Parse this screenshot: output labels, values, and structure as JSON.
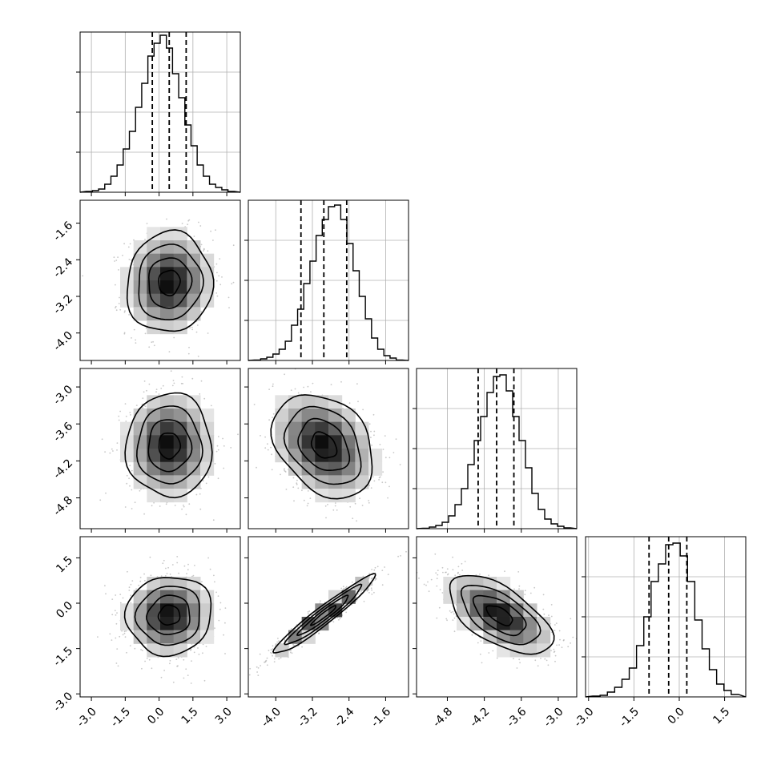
{
  "chart_data": {
    "type": "corner",
    "title": "",
    "params": [
      {
        "index": 0,
        "range": [
          -3.5,
          3.6
        ],
        "ticks": [
          -3.0,
          -1.5,
          0.0,
          1.5,
          3.0
        ],
        "tick_labels": [
          "-3.0",
          "-1.5",
          "0.0",
          "1.5",
          "3.0"
        ],
        "quantiles": [
          -0.3,
          0.45,
          1.2
        ]
      },
      {
        "index": 1,
        "range": [
          -4.6,
          -1.1
        ],
        "ticks": [
          -4.0,
          -3.2,
          -2.4,
          -1.6
        ],
        "tick_labels": [
          "-4.0",
          "-3.2",
          "-2.4",
          "-1.6"
        ],
        "quantiles": [
          -3.45,
          -2.95,
          -2.45
        ]
      },
      {
        "index": 2,
        "range": [
          -5.3,
          -2.7
        ],
        "ticks": [
          -4.8,
          -4.2,
          -3.6,
          -3.0
        ],
        "tick_labels": [
          "-4.8",
          "-4.2",
          "-3.6",
          "-3.0"
        ],
        "quantiles": [
          -4.3,
          -4.0,
          -3.72
        ]
      },
      {
        "index": 3,
        "range": [
          -3.1,
          2.2
        ],
        "ticks": [
          -3.0,
          -1.5,
          0.0,
          1.5
        ],
        "tick_labels": [
          "-3.0",
          "-1.5",
          "0.0",
          "1.5"
        ],
        "quantiles": [
          -1.0,
          -0.35,
          0.25
        ]
      }
    ],
    "diag_yticks": [
      0.25,
      0.5,
      0.75
    ],
    "hist_heights": [
      [
        0.005,
        0.01,
        0.02,
        0.05,
        0.1,
        0.17,
        0.27,
        0.38,
        0.53,
        0.68,
        0.85,
        0.93,
        0.98,
        0.9,
        0.74,
        0.59,
        0.42,
        0.29,
        0.17,
        0.1,
        0.05,
        0.03,
        0.015,
        0.005
      ],
      [
        0.003,
        0.01,
        0.02,
        0.04,
        0.07,
        0.12,
        0.22,
        0.32,
        0.48,
        0.62,
        0.78,
        0.88,
        0.96,
        0.97,
        0.88,
        0.73,
        0.56,
        0.4,
        0.26,
        0.14,
        0.07,
        0.03,
        0.015,
        0.003
      ],
      [
        0.003,
        0.01,
        0.02,
        0.04,
        0.08,
        0.15,
        0.25,
        0.4,
        0.55,
        0.7,
        0.85,
        0.95,
        0.96,
        0.86,
        0.7,
        0.55,
        0.38,
        0.22,
        0.12,
        0.06,
        0.03,
        0.015,
        0.005
      ],
      [
        0.005,
        0.01,
        0.03,
        0.06,
        0.11,
        0.18,
        0.32,
        0.5,
        0.72,
        0.83,
        0.95,
        0.96,
        0.88,
        0.72,
        0.48,
        0.3,
        0.17,
        0.08,
        0.04,
        0.015
      ]
    ],
    "pairs": [
      {
        "x": 0,
        "y": 1,
        "center": [
          0.45,
          -2.9
        ],
        "sd": [
          0.95,
          0.55
        ],
        "rho": 0.05
      },
      {
        "x": 0,
        "y": 2,
        "center": [
          0.45,
          -3.95
        ],
        "sd": [
          0.95,
          0.42
        ],
        "rho": 0.0
      },
      {
        "x": 1,
        "y": 2,
        "center": [
          -2.95,
          -3.95
        ],
        "sd": [
          0.55,
          0.42
        ],
        "rho": -0.3
      },
      {
        "x": 0,
        "y": 3,
        "center": [
          0.45,
          -0.4
        ],
        "sd": [
          0.95,
          0.65
        ],
        "rho": 0.05
      },
      {
        "x": 1,
        "y": 3,
        "center": [
          -2.95,
          -0.4
        ],
        "sd": [
          0.55,
          0.65
        ],
        "rho": 0.96
      },
      {
        "x": 2,
        "y": 3,
        "center": [
          -3.95,
          -0.4
        ],
        "sd": [
          0.42,
          0.65
        ],
        "rho": -0.6
      }
    ],
    "contour_levels_sigma": [
      0.5,
      1.0,
      1.5,
      2.0
    ],
    "colors": {
      "line": "#000000",
      "grid": "#b0b0b0",
      "points": "#9a9a9a",
      "frame": "#000000"
    },
    "grid": true
  }
}
